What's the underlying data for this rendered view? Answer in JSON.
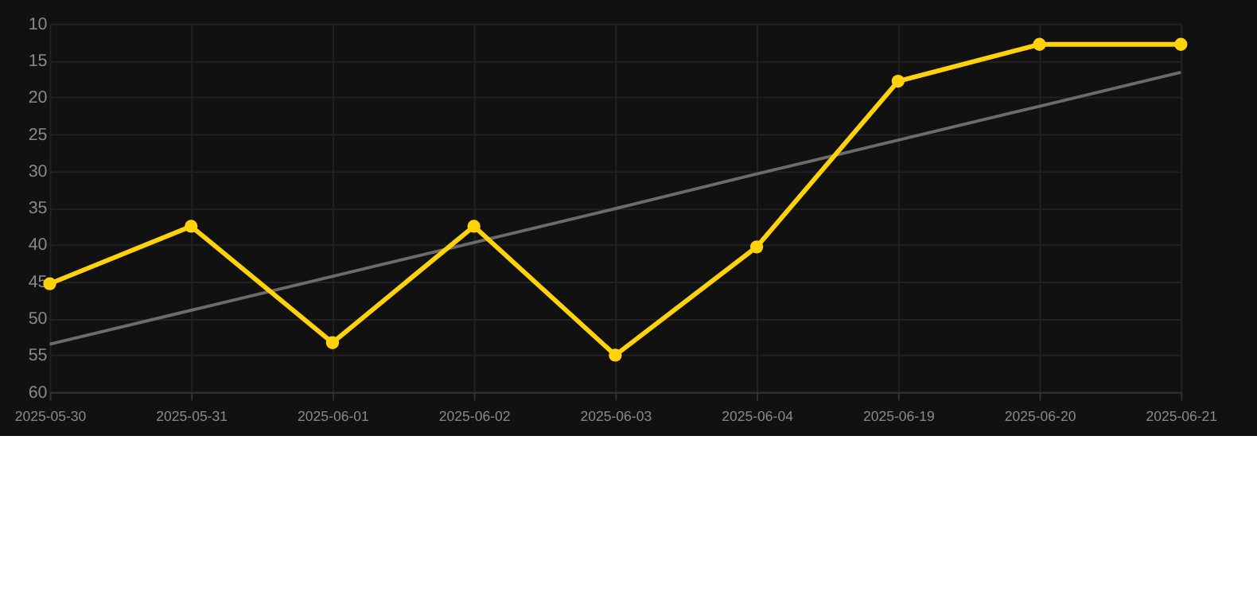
{
  "chart_data": {
    "type": "line",
    "categories": [
      "2025-05-30",
      "2025-05-31",
      "2025-06-01",
      "2025-06-02",
      "2025-06-03",
      "2025-06-04",
      "2025-06-19",
      "2025-06-20",
      "2025-06-21"
    ],
    "series": [
      {
        "color": "#ffd20a",
        "values": [
          45.3,
          37.5,
          53.3,
          37.5,
          55,
          40.3,
          17.8,
          12.8,
          12.8
        ],
        "marker": "circle"
      },
      {
        "type": "line",
        "color": "#6b6b6b",
        "values": [
          53.5,
          48.9,
          44.3,
          39.7,
          35.1,
          30.4,
          25.8,
          21.2,
          16.6
        ],
        "marker": "none"
      }
    ],
    "ylim": [
      60,
      10
    ],
    "yticks": [
      10,
      15,
      20,
      25,
      30,
      35,
      40,
      45,
      50,
      55,
      60
    ],
    "grid": true,
    "line_style": "solid"
  }
}
